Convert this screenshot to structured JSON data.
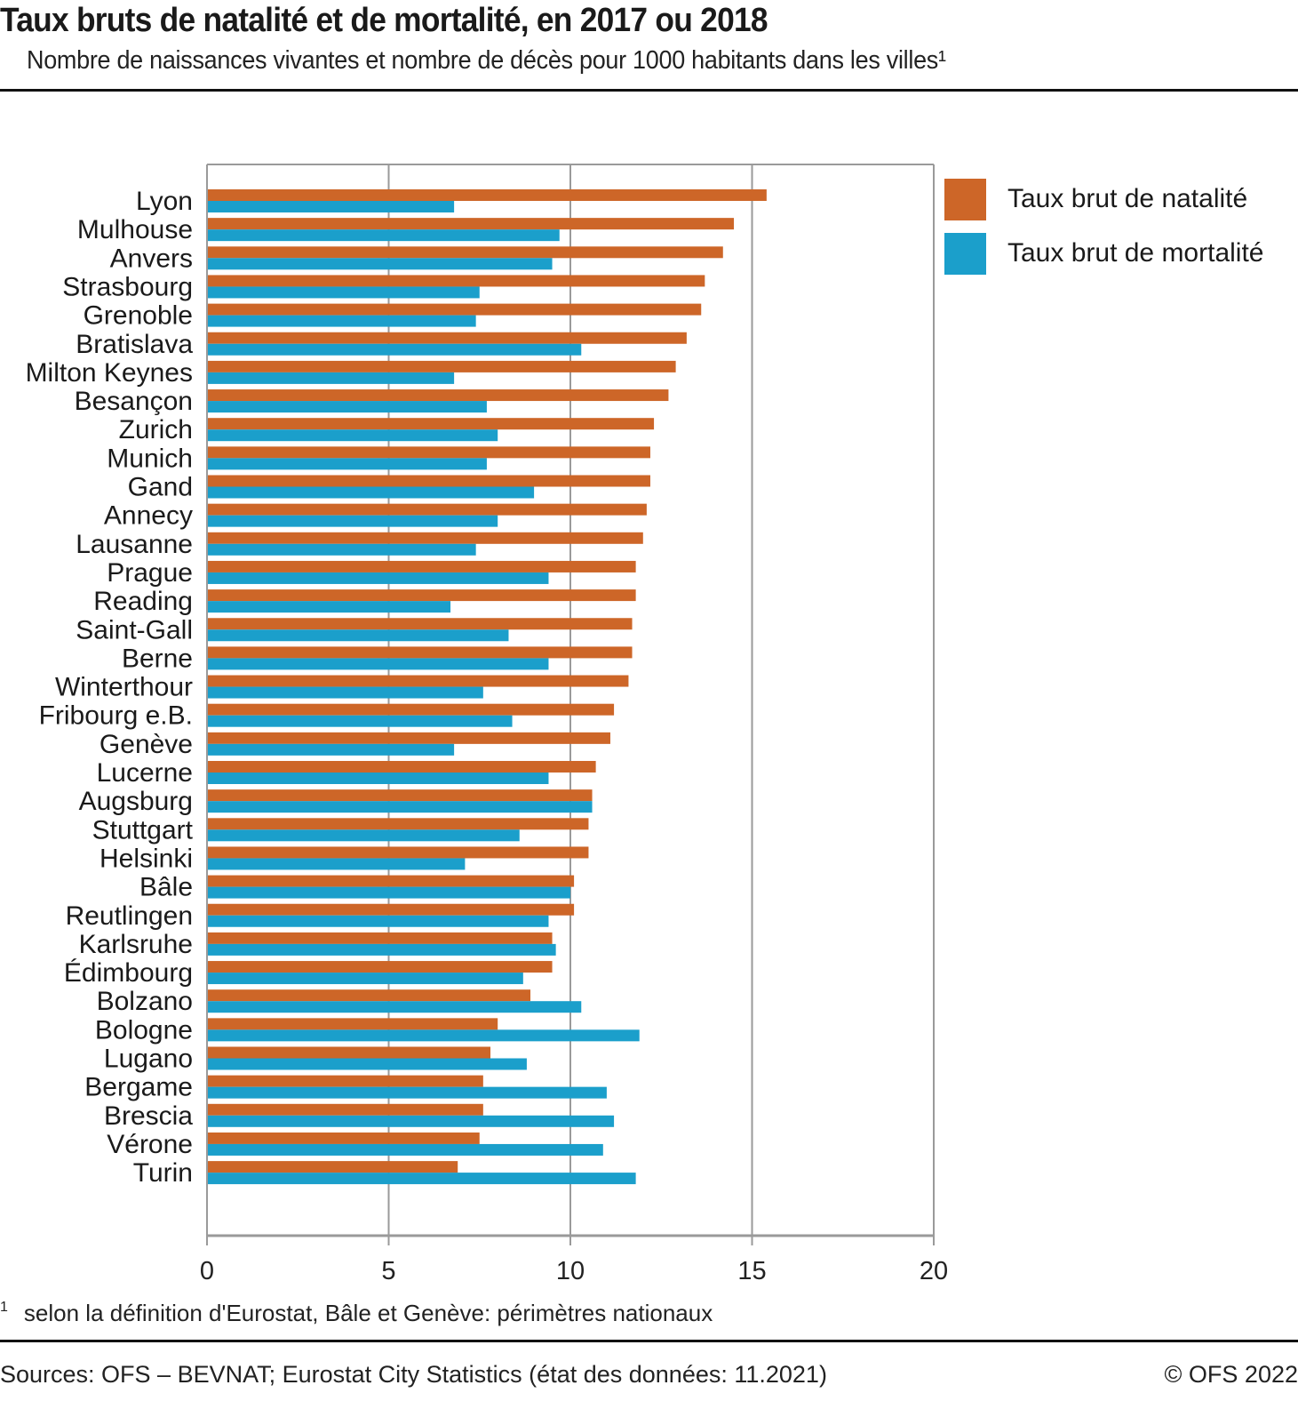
{
  "header": {
    "title": "Taux bruts de natalité et de mortalité, en 2017 ou 2018",
    "subtitle": "Nombre de naissances vivantes et nombre de décès pour 1000 habitants dans les villes¹"
  },
  "footer": {
    "footnote_mark": "1",
    "footnote": "selon la définition d'Eurostat, Bâle et Genève: périmètres nationaux",
    "source": "Sources: OFS – BEVNAT; Eurostat City Statistics (état des données: 11.2021)",
    "copyright": "© OFS 2022"
  },
  "chart_data": {
    "type": "bar",
    "orientation": "horizontal",
    "title": "Taux bruts de natalité et de mortalité, en 2017 ou 2018",
    "subtitle": "Nombre de naissances vivantes et nombre de décès pour 1000 habitants dans les villes¹",
    "xlabel": "",
    "ylabel": "",
    "xlim": [
      0,
      20
    ],
    "xticks": [
      0,
      5,
      10,
      15,
      20
    ],
    "xtick_labels": [
      "0",
      "5",
      "10",
      "15",
      "20"
    ],
    "grid": true,
    "legend_position": "top-right",
    "categories": [
      "Lyon",
      "Mulhouse",
      "Anvers",
      "Strasbourg",
      "Grenoble",
      "Bratislava",
      "Milton Keynes",
      "Besançon",
      "Zurich",
      "Munich",
      "Gand",
      "Annecy",
      "Lausanne",
      "Prague",
      "Reading",
      "Saint-Gall",
      "Berne",
      "Winterthour",
      "Fribourg e.B.",
      "Genève",
      "Lucerne",
      "Augsburg",
      "Stuttgart",
      "Helsinki",
      "Bâle",
      "Reutlingen",
      "Karlsruhe",
      "Édimbourg",
      "Bolzano",
      "Bologne",
      "Lugano",
      "Bergame",
      "Brescia",
      "Vérone",
      "Turin"
    ],
    "series": [
      {
        "name": "Taux brut de natalité",
        "color": "#cd6628",
        "values": [
          15.4,
          14.5,
          14.2,
          13.7,
          13.6,
          13.2,
          12.9,
          12.7,
          12.3,
          12.2,
          12.2,
          12.1,
          12.0,
          11.8,
          11.8,
          11.7,
          11.7,
          11.6,
          11.2,
          11.1,
          10.7,
          10.6,
          10.5,
          10.5,
          10.1,
          10.1,
          9.5,
          9.5,
          8.9,
          8.0,
          7.8,
          7.6,
          7.6,
          7.5,
          6.9
        ]
      },
      {
        "name": "Taux brut de mortalité",
        "color": "#1b9fcb",
        "values": [
          6.8,
          9.7,
          9.5,
          7.5,
          7.4,
          10.3,
          6.8,
          7.7,
          8.0,
          7.7,
          9.0,
          8.0,
          7.4,
          9.4,
          6.7,
          8.3,
          9.4,
          7.6,
          8.4,
          6.8,
          9.4,
          10.6,
          8.6,
          7.1,
          10.0,
          9.4,
          9.6,
          8.7,
          10.3,
          11.9,
          8.8,
          11.0,
          11.2,
          10.9,
          11.8
        ]
      }
    ]
  }
}
